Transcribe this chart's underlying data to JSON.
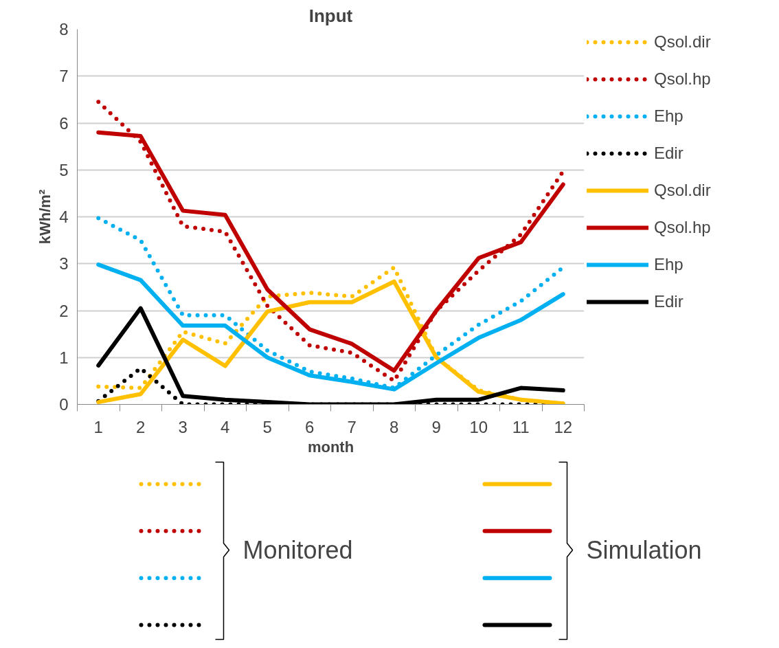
{
  "chart_data": {
    "type": "line",
    "title": "Input",
    "xlabel": "month",
    "ylabel": "kWh/m²",
    "categories": [
      "1",
      "2",
      "3",
      "4",
      "5",
      "6",
      "7",
      "8",
      "9",
      "10",
      "11",
      "12"
    ],
    "ylim": [
      0,
      8
    ],
    "yticks": [
      0,
      1,
      2,
      3,
      4,
      5,
      6,
      7,
      8
    ],
    "grid": "y",
    "legend": "right",
    "marker": "none",
    "series": [
      {
        "name": "Qsol.dir",
        "color": "#ffc000",
        "line_style": "dotted",
        "values": [
          0.38,
          0.35,
          1.55,
          1.3,
          2.3,
          2.38,
          2.3,
          2.92,
          1.0,
          0.3,
          0.1,
          0.02
        ]
      },
      {
        "name": "Qsol.hp",
        "color": "#c00000",
        "line_style": "dotted",
        "values": [
          6.45,
          5.6,
          3.8,
          3.68,
          2.1,
          1.26,
          1.1,
          0.5,
          2.0,
          2.85,
          3.62,
          4.97
        ]
      },
      {
        "name": "Ehp",
        "color": "#00b0f0",
        "line_style": "dotted",
        "values": [
          3.97,
          3.5,
          1.9,
          1.9,
          1.15,
          0.7,
          0.55,
          0.35,
          1.05,
          1.7,
          2.2,
          2.92
        ]
      },
      {
        "name": "Edir",
        "color": "#000000",
        "line_style": "dotted",
        "values": [
          0.07,
          0.77,
          0.0,
          0.0,
          0.0,
          0.0,
          0.0,
          0.0,
          0.0,
          0.0,
          0.0,
          0.0
        ]
      },
      {
        "name": "Qsol.dir",
        "color": "#ffc000",
        "line_style": "solid",
        "values": [
          0.05,
          0.22,
          1.38,
          0.82,
          1.98,
          2.18,
          2.18,
          2.62,
          1.0,
          0.27,
          0.1,
          0.02
        ]
      },
      {
        "name": "Qsol.hp",
        "color": "#c00000",
        "line_style": "solid",
        "values": [
          5.8,
          5.72,
          4.13,
          4.04,
          2.45,
          1.6,
          1.29,
          0.72,
          2.0,
          3.12,
          3.46,
          4.69
        ]
      },
      {
        "name": "Ehp",
        "color": "#00b0f0",
        "line_style": "solid",
        "values": [
          2.98,
          2.65,
          1.68,
          1.68,
          1.0,
          0.62,
          0.48,
          0.32,
          0.88,
          1.42,
          1.8,
          2.35
        ]
      },
      {
        "name": "Edir",
        "color": "#000000",
        "line_style": "solid",
        "values": [
          0.83,
          2.05,
          0.18,
          0.1,
          0.05,
          0.0,
          0.0,
          0.0,
          0.1,
          0.1,
          0.35,
          0.3
        ]
      }
    ],
    "annotations": [
      "Monitored",
      "Simulation"
    ]
  }
}
